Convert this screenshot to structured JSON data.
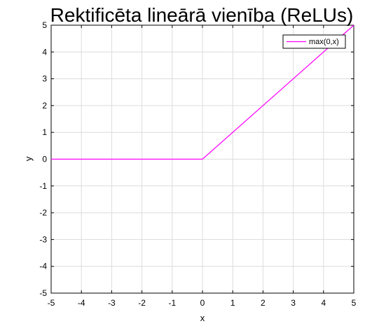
{
  "chart_data": {
    "type": "line",
    "title": "Rektificēta lineārā vienība (ReLUs)",
    "xlabel": "x",
    "ylabel": "y",
    "xlim": [
      -5,
      5
    ],
    "ylim": [
      -5,
      5
    ],
    "xticks": [
      -5,
      -4,
      -3,
      -2,
      -1,
      0,
      1,
      2,
      3,
      4,
      5
    ],
    "yticks": [
      -5,
      -4,
      -3,
      -2,
      -1,
      0,
      1,
      2,
      3,
      4,
      5
    ],
    "x_tick_labels": [
      "-5",
      "-4",
      "-3",
      "-2",
      "-1",
      "0",
      "1",
      "2",
      "3",
      "4",
      "5"
    ],
    "y_tick_labels": [
      "-5",
      "-4",
      "-3",
      "-2",
      "-1",
      "0",
      "1",
      "2",
      "3",
      "4",
      "5"
    ],
    "grid": true,
    "legend_position": "top-right",
    "series": [
      {
        "name": "max(0,x)",
        "color": "#ff00ff",
        "x": [
          -5,
          0,
          5
        ],
        "y": [
          0,
          0,
          5
        ]
      }
    ]
  }
}
